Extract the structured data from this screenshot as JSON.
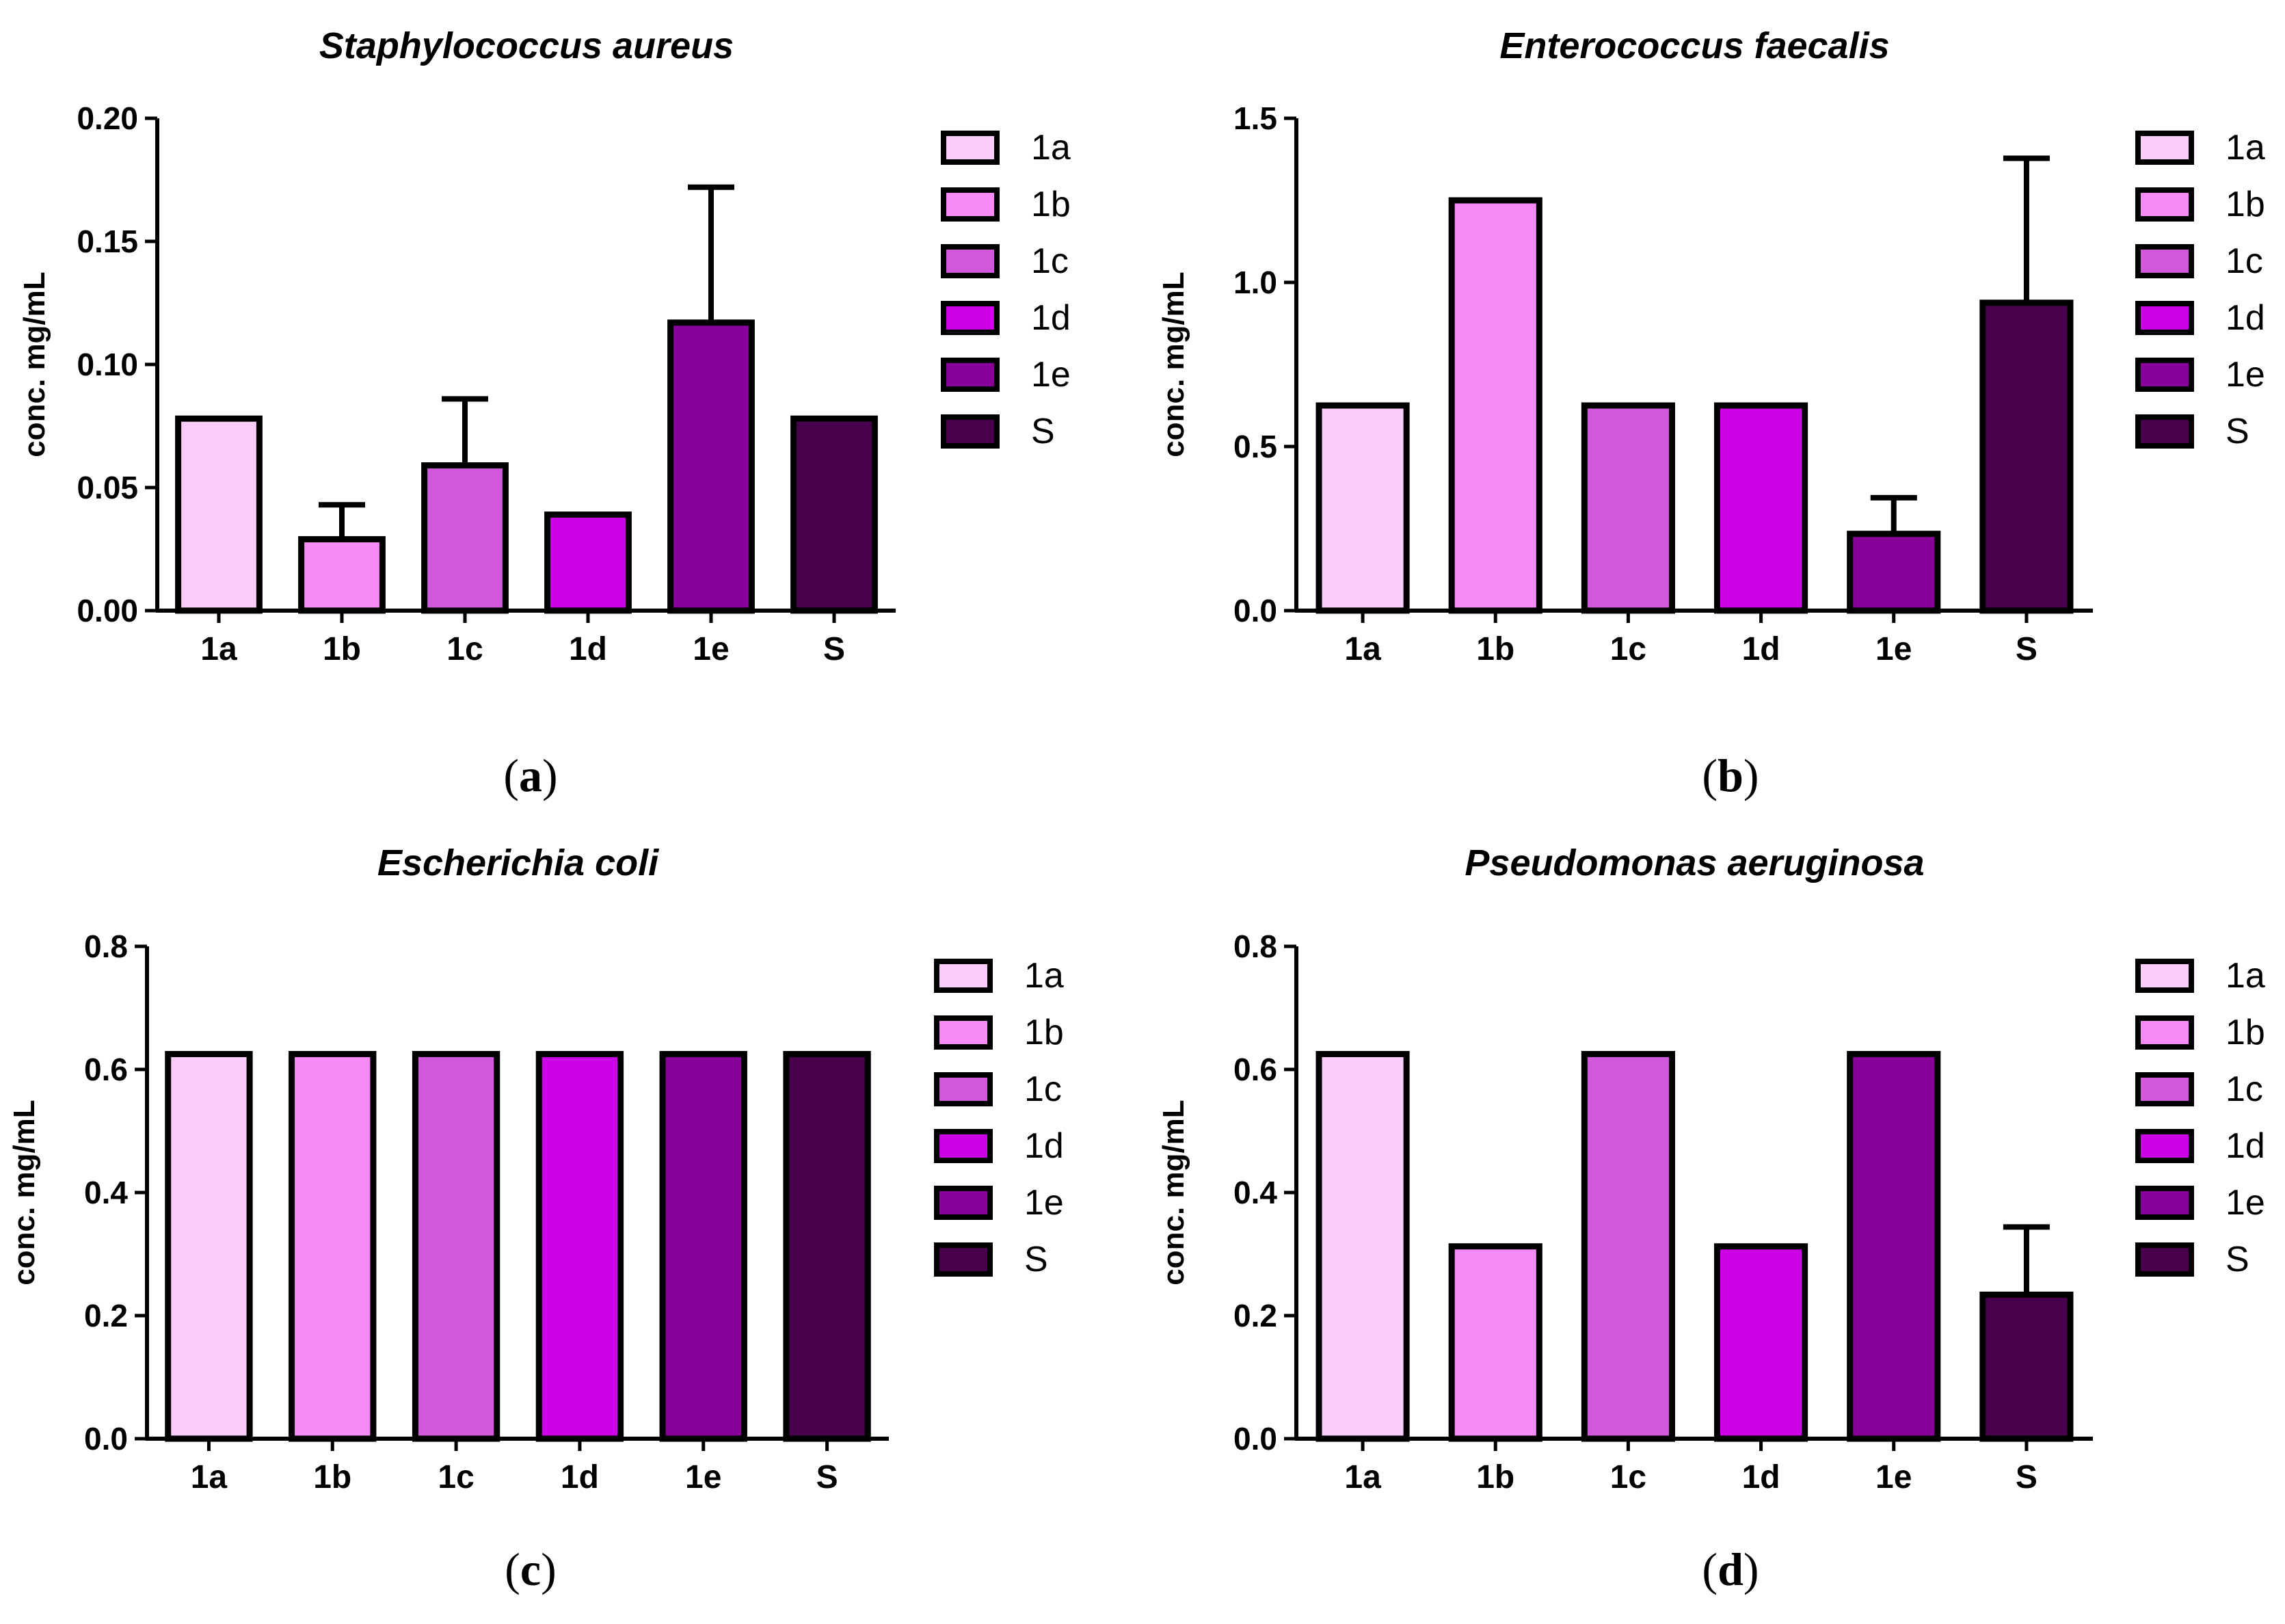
{
  "chart_data": [
    {
      "type": "bar",
      "title": "Staphylococcus aureus",
      "panel_label": "a",
      "ylabel": "conc. mg/mL",
      "xlabel": "",
      "categories": [
        "1a",
        "1b",
        "1c",
        "1d",
        "1e",
        "S"
      ],
      "values": [
        0.078,
        0.029,
        0.059,
        0.039,
        0.117,
        0.078
      ],
      "error": [
        0,
        0.014,
        0.027,
        0,
        0.055,
        0
      ],
      "ylim": [
        0,
        0.2
      ],
      "yticks": [
        "0.00",
        "0.05",
        "0.10",
        "0.15",
        "0.20"
      ],
      "legend": [
        "1a",
        "1b",
        "1c",
        "1d",
        "1e",
        "S"
      ],
      "legend_position": "right",
      "grid": false
    },
    {
      "type": "bar",
      "title": "Enterococcus faecalis",
      "panel_label": "b",
      "ylabel": "conc. mg/mL",
      "xlabel": "",
      "categories": [
        "1a",
        "1b",
        "1c",
        "1d",
        "1e",
        "S"
      ],
      "values": [
        0.625,
        1.25,
        0.625,
        0.625,
        0.234,
        0.938
      ],
      "error": [
        0,
        0,
        0,
        0,
        0.11,
        0.44
      ],
      "ylim": [
        0,
        1.5
      ],
      "yticks": [
        "0.0",
        "0.5",
        "1.0",
        "1.5"
      ],
      "legend": [
        "1a",
        "1b",
        "1c",
        "1d",
        "1e",
        "S"
      ],
      "legend_position": "right",
      "grid": false
    },
    {
      "type": "bar",
      "title": "Escherichia coli",
      "panel_label": "c",
      "ylabel": "conc. mg/mL",
      "xlabel": "",
      "categories": [
        "1a",
        "1b",
        "1c",
        "1d",
        "1e",
        "S"
      ],
      "values": [
        0.625,
        0.625,
        0.625,
        0.625,
        0.625,
        0.625
      ],
      "error": [
        0,
        0,
        0,
        0,
        0,
        0
      ],
      "ylim": [
        0,
        0.8
      ],
      "yticks": [
        "0.0",
        "0.2",
        "0.4",
        "0.6",
        "0.8"
      ],
      "legend": [
        "1a",
        "1b",
        "1c",
        "1d",
        "1e",
        "S"
      ],
      "legend_position": "right",
      "grid": false
    },
    {
      "type": "bar",
      "title": "Pseudomonas aeruginosa",
      "panel_label": "d",
      "ylabel": "conc. mg/mL",
      "xlabel": "",
      "categories": [
        "1a",
        "1b",
        "1c",
        "1d",
        "1e",
        "S"
      ],
      "values": [
        0.625,
        0.3125,
        0.625,
        0.3125,
        0.625,
        0.234
      ],
      "error": [
        0,
        0,
        0,
        0,
        0,
        0.11
      ],
      "ylim": [
        0,
        0.8
      ],
      "yticks": [
        "0.0",
        "0.2",
        "0.4",
        "0.6",
        "0.8"
      ],
      "legend": [
        "1a",
        "1b",
        "1c",
        "1d",
        "1e",
        "S"
      ],
      "legend_position": "right",
      "grid": false
    }
  ],
  "colors": [
    "#f9ccf9",
    "#f68af6",
    "#d157db",
    "#cc00e6",
    "#880099",
    "#48004d"
  ],
  "captions": [
    {
      "open": "(",
      "label": "a",
      "close": ")"
    },
    {
      "open": "(",
      "label": "b",
      "close": ")"
    },
    {
      "open": "(",
      "label": "c",
      "close": ")"
    },
    {
      "open": "(",
      "label": "d",
      "close": ")"
    }
  ]
}
